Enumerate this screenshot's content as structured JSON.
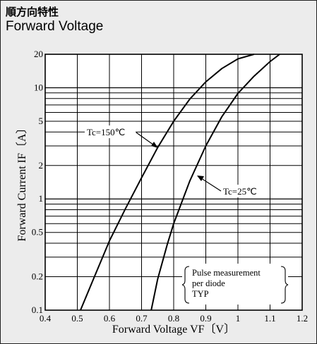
{
  "title_jp": "順方向特性",
  "title_en": "Forward Voltage",
  "chart_data": {
    "type": "line",
    "xlabel": "Forward Voltage VF〔V〕",
    "ylabel": "Forward Current IF〔A〕",
    "xlim": [
      0.4,
      1.2
    ],
    "ylim": [
      0.1,
      20
    ],
    "yscale": "log",
    "grid": true,
    "x_ticks": [
      "0.4",
      "0.5",
      "0.6",
      "0.7",
      "0.8",
      "0.9",
      "1",
      "1.1",
      "1.2"
    ],
    "y_ticks": [
      {
        "value": 0.1,
        "label": "0.1"
      },
      {
        "value": 0.2,
        "label": "0.2"
      },
      {
        "value": 0.5,
        "label": "0.5"
      },
      {
        "value": 1,
        "label": "1"
      },
      {
        "value": 2,
        "label": "2"
      },
      {
        "value": 5,
        "label": "5"
      },
      {
        "value": 10,
        "label": "10"
      },
      {
        "value": 20,
        "label": "20"
      }
    ],
    "series": [
      {
        "name": "Tc=150℃",
        "x": [
          0.51,
          0.55,
          0.6,
          0.65,
          0.7,
          0.75,
          0.8,
          0.85,
          0.9,
          0.95,
          1.0,
          1.05
        ],
        "y": [
          0.1,
          0.19,
          0.42,
          0.82,
          1.55,
          2.9,
          5.0,
          7.9,
          11.3,
          14.9,
          18.2,
          20
        ]
      },
      {
        "name": "Tc=25℃",
        "x": [
          0.73,
          0.75,
          0.78,
          0.8,
          0.85,
          0.9,
          0.95,
          1.0,
          1.05,
          1.1,
          1.13
        ],
        "y": [
          0.1,
          0.19,
          0.39,
          0.6,
          1.45,
          3.0,
          5.5,
          8.9,
          12.7,
          17.2,
          20
        ]
      }
    ],
    "annotations": [
      "Tc=150℃",
      "Tc=25℃"
    ],
    "note": [
      "Pulse measurement",
      "per diode",
      "TYP"
    ]
  }
}
